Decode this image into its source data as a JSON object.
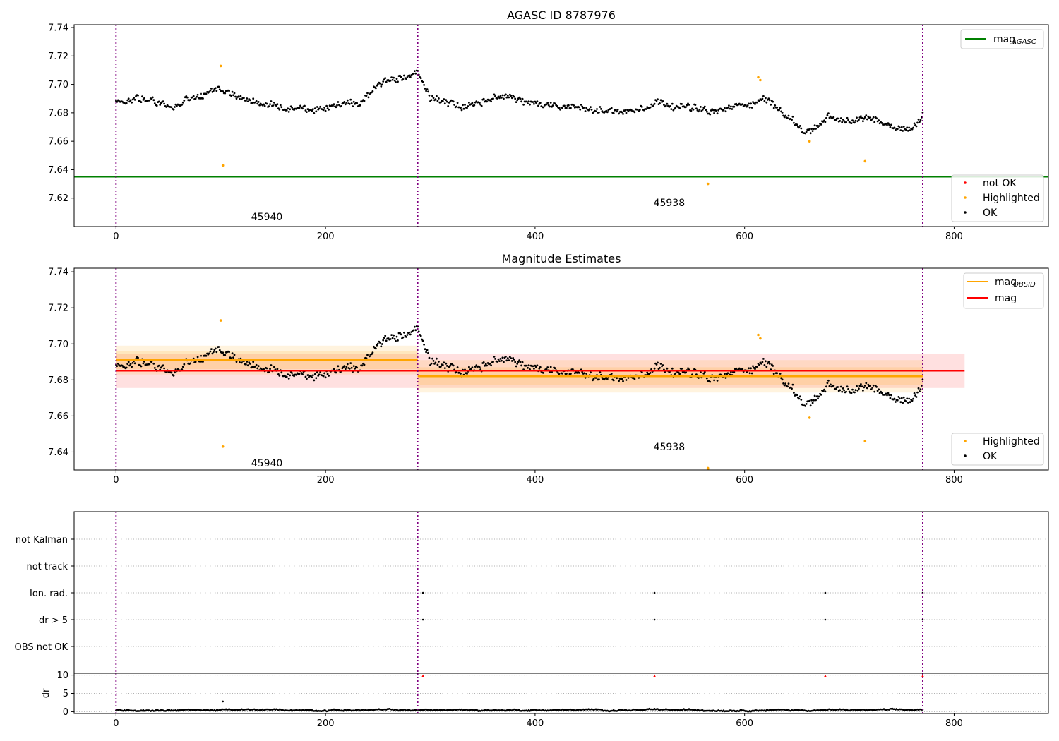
{
  "chart_data": [
    {
      "type": "scatter",
      "title": "AGASC ID 8787976",
      "xlim": [
        -40,
        890
      ],
      "ylim": [
        7.6,
        7.742
      ],
      "xticks": [
        0,
        200,
        400,
        600,
        800
      ],
      "yticks": [
        7.62,
        7.64,
        7.66,
        7.68,
        7.7,
        7.72,
        7.74
      ],
      "obsid_boundaries": [
        0,
        288,
        770
      ],
      "obsid_labels": [
        {
          "text": "45940",
          "x": 144,
          "y": 7.607
        },
        {
          "text": "45938",
          "x": 528,
          "y": 7.617
        }
      ],
      "mag_agasc": 7.635,
      "legend_upper": [
        {
          "label": "mag",
          "sub": "AGASC",
          "color": "#008000"
        }
      ],
      "legend_lower": [
        {
          "label": "not OK",
          "color": "#ff0000"
        },
        {
          "label": "Highlighted",
          "color": "#ffa500"
        },
        {
          "label": "OK",
          "color": "#000000"
        }
      ],
      "highlighted": [
        [
          100,
          7.713
        ],
        [
          102,
          7.643
        ],
        [
          565,
          7.63
        ],
        [
          613,
          7.705
        ],
        [
          615,
          7.703
        ],
        [
          662,
          7.66
        ],
        [
          715,
          7.646
        ]
      ]
    },
    {
      "type": "scatter",
      "title": "Magnitude Estimates",
      "xlim": [
        -40,
        890
      ],
      "ylim": [
        7.63,
        7.742
      ],
      "xticks": [
        0,
        200,
        400,
        600,
        800
      ],
      "yticks": [
        7.64,
        7.66,
        7.68,
        7.7,
        7.72,
        7.74
      ],
      "obsid_boundaries": [
        0,
        288,
        770
      ],
      "obsid_labels": [
        {
          "text": "45940",
          "x": 144,
          "y": 7.634
        },
        {
          "text": "45938",
          "x": 528,
          "y": 7.643
        }
      ],
      "mag": 7.685,
      "mag_band": [
        7.6755,
        7.6945
      ],
      "mag_x_range": [
        0,
        810
      ],
      "mag_obsid": [
        {
          "x0": 0,
          "x1": 288,
          "value": 7.691,
          "band_inner": [
            7.686,
            7.696
          ],
          "band_outer": [
            7.683,
            7.699
          ]
        },
        {
          "x0": 288,
          "x1": 770,
          "value": 7.682,
          "band_inner": [
            7.677,
            7.687
          ],
          "band_outer": [
            7.673,
            7.691
          ]
        }
      ],
      "legend_upper": [
        {
          "label": "mag",
          "sub": "OBSID",
          "color": "#ffa500"
        },
        {
          "label": "mag",
          "sub": "",
          "color": "#ff0000"
        }
      ],
      "legend_lower": [
        {
          "label": "Highlighted",
          "color": "#ffa500"
        },
        {
          "label": "OK",
          "color": "#000000"
        }
      ],
      "highlighted": [
        [
          100,
          7.713
        ],
        [
          102,
          7.643
        ],
        [
          565,
          7.631
        ],
        [
          565,
          7.6305
        ],
        [
          613,
          7.705
        ],
        [
          615,
          7.703
        ],
        [
          662,
          7.659
        ],
        [
          715,
          7.646
        ]
      ]
    },
    {
      "type": "scatter",
      "xlim": [
        -40,
        890
      ],
      "xticks": [
        0,
        200,
        400,
        600,
        800
      ],
      "obsid_boundaries": [
        0,
        288,
        770
      ],
      "flag_categories": [
        "not Kalman",
        "not track",
        "Ion. rad.",
        "dr > 5",
        "OBS not OK"
      ],
      "flag_points": [
        {
          "flag": "Ion. rad.",
          "x": [
            293,
            514,
            677,
            770
          ]
        },
        {
          "flag": "dr > 5",
          "x": [
            293,
            514,
            677,
            770
          ]
        }
      ],
      "dr_ylabel": "dr",
      "dr_ylim": [
        -0.5,
        10.5
      ],
      "dr_yticks": [
        0,
        5,
        10
      ],
      "dr_outliers": [
        [
          293,
          9.8
        ],
        [
          514,
          9.8
        ],
        [
          677,
          9.8
        ],
        [
          770,
          9.8
        ]
      ],
      "dr_spike": [
        [
          102,
          2.8
        ]
      ]
    }
  ],
  "colors": {
    "ok": "#000000",
    "highlighted": "#ffa500",
    "not_ok": "#ff0000",
    "boundary": "#800080",
    "agasc": "#008000",
    "obsid": "#ffa500",
    "mag": "#ff0000"
  }
}
